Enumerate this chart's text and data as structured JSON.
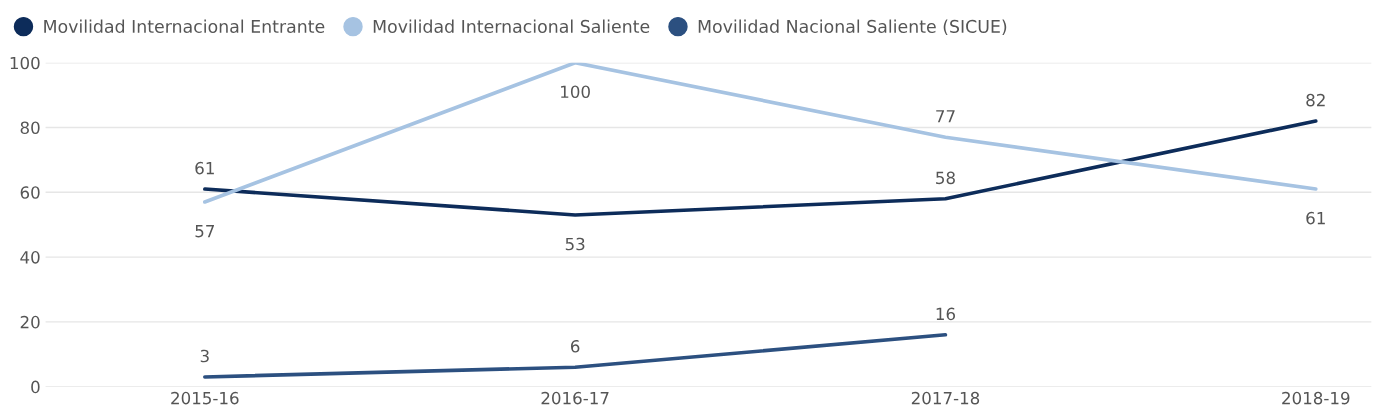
{
  "chart_data": {
    "type": "line",
    "categories": [
      "2015-16",
      "2016-17",
      "2017-18",
      "2018-19"
    ],
    "series": [
      {
        "name": "Movilidad Internacional Entrante",
        "color": "#0d2c5a",
        "values": [
          61,
          53,
          58,
          82
        ]
      },
      {
        "name": "Movilidad Internacional Saliente",
        "color": "#a6c3e2",
        "values": [
          57,
          100,
          77,
          61
        ]
      },
      {
        "name": "Movilidad Nacional Saliente (SICUE)",
        "color": "#2c5080",
        "values": [
          3,
          6,
          16,
          null
        ]
      }
    ],
    "ylim": [
      0,
      100
    ],
    "yticks": [
      0,
      20,
      40,
      60,
      80,
      100
    ],
    "grid": "y",
    "legend": "top left",
    "data_labels": true,
    "marker": "none",
    "line_style": "solid"
  }
}
